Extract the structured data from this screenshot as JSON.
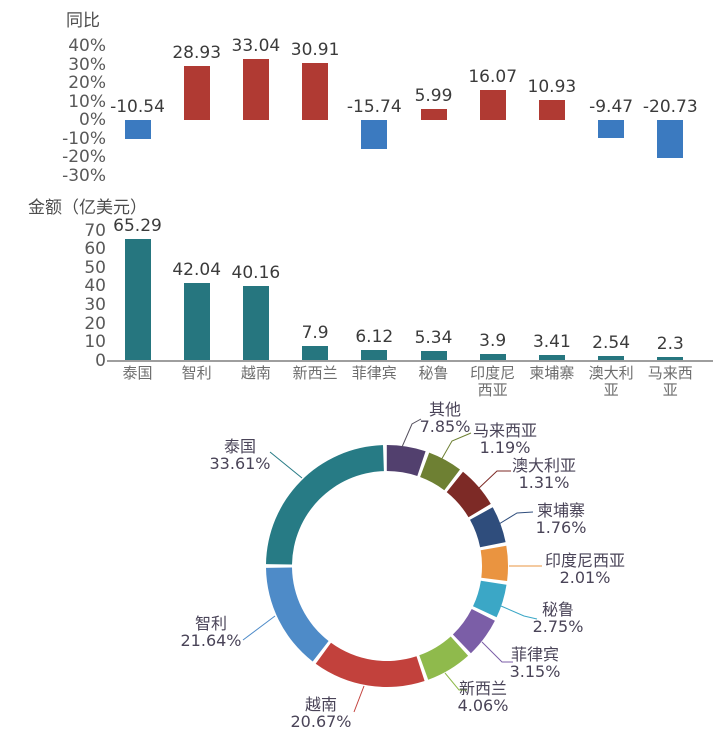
{
  "chart_data": [
    {
      "type": "bar",
      "title": "同比",
      "categories": [
        "泰国",
        "智利",
        "越南",
        "新西兰",
        "菲律宾",
        "秘鲁",
        "印度尼西亚",
        "柬埔寨",
        "澳大利亚",
        "马来西亚"
      ],
      "values": [
        -10.54,
        28.93,
        33.04,
        30.91,
        -15.74,
        5.99,
        16.07,
        10.93,
        -9.47,
        -20.73
      ],
      "unit": "%",
      "y_ticks": [
        "40%",
        "30%",
        "20%",
        "10%",
        "0%",
        "-10%",
        "-20%",
        "-30%"
      ],
      "ylim": [
        -30,
        40
      ],
      "grid": false,
      "positive_color": "#b03a33",
      "negative_color": "#3b7ac0",
      "value_labels_shown": true,
      "category_axis_shown": false
    },
    {
      "type": "bar",
      "title": "金额（亿美元）",
      "categories": [
        "泰国",
        "智利",
        "越南",
        "新西兰",
        "菲律宾",
        "秘鲁",
        "印度尼西亚",
        "柬埔寨",
        "澳大利亚",
        "马来西亚"
      ],
      "category_display_lines": [
        "泰国",
        "智利",
        "越南",
        "新西兰",
        "菲律宾",
        "秘鲁",
        "印度尼\n西亚",
        "柬埔寨",
        "澳大利\n亚",
        "马来西\n亚"
      ],
      "values": [
        65.29,
        42.04,
        40.16,
        7.9,
        6.12,
        5.34,
        3.9,
        3.41,
        2.54,
        2.3
      ],
      "y_ticks": [
        "70",
        "60",
        "50",
        "40",
        "30",
        "20",
        "10",
        "0"
      ],
      "ylim": [
        0,
        70
      ],
      "grid": false,
      "bar_color": "#26767f",
      "value_labels_shown": true,
      "category_axis_shown": true
    },
    {
      "type": "donut",
      "direction": "clockwise",
      "start": "top",
      "label_text_color": "#4a4458",
      "slices": [
        {
          "label": "其他",
          "pct": 7.85,
          "pct_text": "7.85%",
          "color": "#52406e"
        },
        {
          "label": "马来西亚",
          "pct": 1.19,
          "pct_text": "1.19%",
          "color": "#6e8033"
        },
        {
          "label": "澳大利亚",
          "pct": 1.31,
          "pct_text": "1.31%",
          "color": "#7d2a26"
        },
        {
          "label": "柬埔寨",
          "pct": 1.76,
          "pct_text": "1.76%",
          "color": "#2f4d7c"
        },
        {
          "label": "印度尼西亚",
          "pct": 2.01,
          "pct_text": "2.01%",
          "color": "#ea9440"
        },
        {
          "label": "秘鲁",
          "pct": 2.75,
          "pct_text": "2.75%",
          "color": "#3ba7c6"
        },
        {
          "label": "菲律宾",
          "pct": 3.15,
          "pct_text": "3.15%",
          "color": "#7b5ea7"
        },
        {
          "label": "新西兰",
          "pct": 4.06,
          "pct_text": "4.06%",
          "color": "#8fba4c"
        },
        {
          "label": "越南",
          "pct": 20.67,
          "pct_text": "20.67%",
          "color": "#c2413c"
        },
        {
          "label": "智利",
          "pct": 21.64,
          "pct_text": "21.64%",
          "color": "#4e8bc8"
        },
        {
          "label": "泰国",
          "pct": 33.61,
          "pct_text": "33.61%",
          "color": "#277b85"
        }
      ]
    }
  ]
}
